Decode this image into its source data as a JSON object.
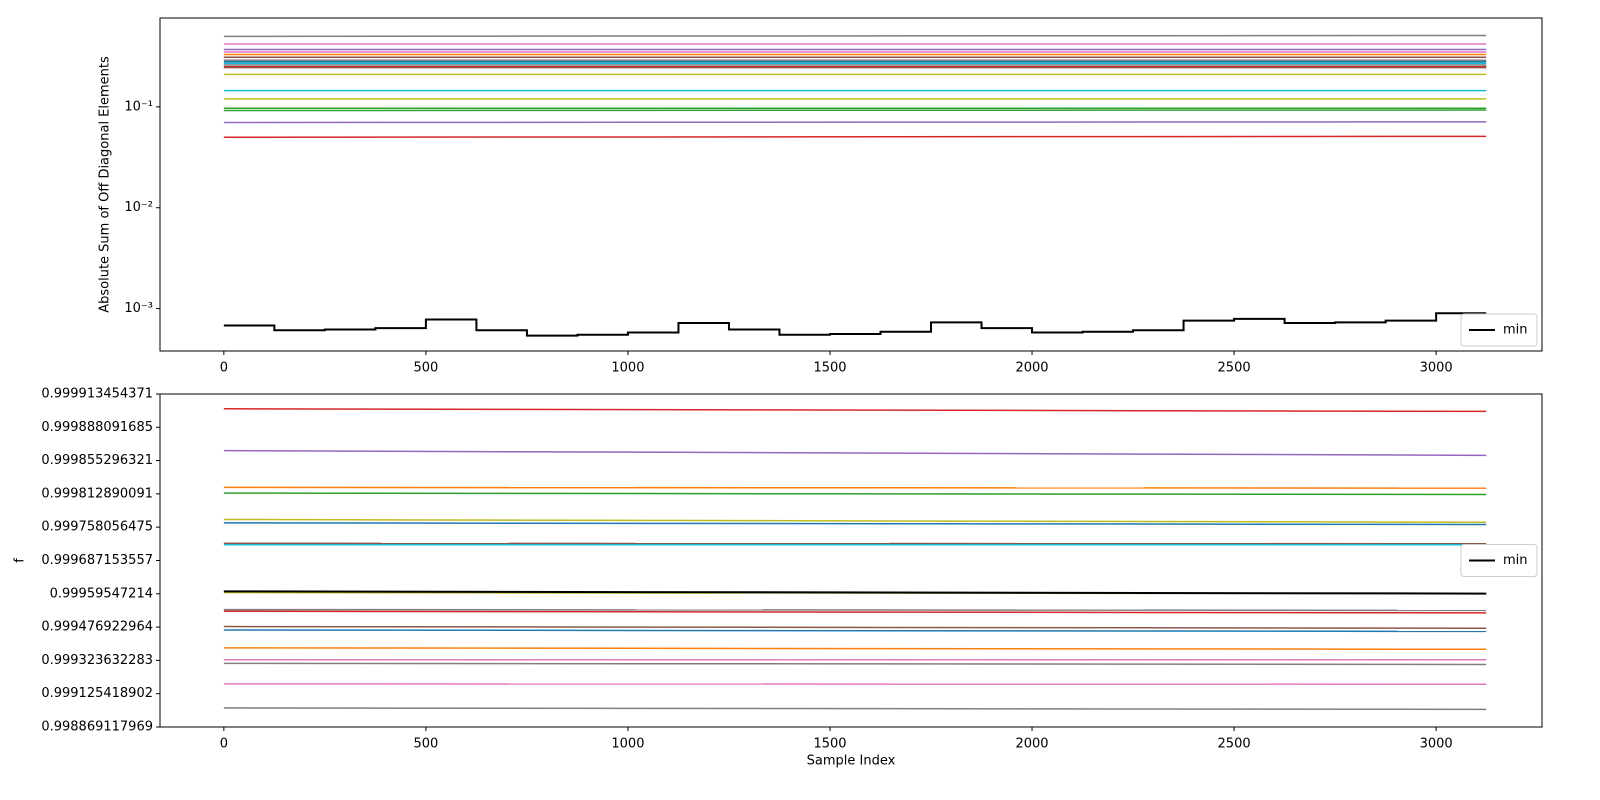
{
  "chart_data": [
    {
      "type": "line",
      "ylabel": "Absolute Sum of Off Diagonal Elements",
      "yscale": "log",
      "legend": "lower right",
      "xlim": [
        -158,
        3262
      ],
      "ylim": [
        0.00038,
        0.76
      ],
      "xticks": [
        0,
        500,
        1000,
        1500,
        2000,
        2500,
        3000
      ],
      "yticks": [
        {
          "value": 0.001,
          "label": "10⁻³"
        },
        {
          "value": 0.01,
          "label": "10⁻²"
        },
        {
          "value": 0.1,
          "label": "10⁻¹"
        }
      ],
      "series": [
        {
          "color": "#7f7f7f",
          "x": [
            0,
            3124
          ],
          "values": [
            0.5,
            0.51
          ]
        },
        {
          "color": "#e377c2",
          "x": [
            0,
            3124
          ],
          "values": [
            0.42,
            0.42
          ]
        },
        {
          "color": "#9467bd",
          "x": [
            0,
            3124
          ],
          "values": [
            0.37,
            0.37
          ]
        },
        {
          "color": "#e377c2",
          "x": [
            0,
            3124
          ],
          "values": [
            0.35,
            0.35
          ]
        },
        {
          "color": "#ff7f0e",
          "x": [
            0,
            3124
          ],
          "values": [
            0.33,
            0.33
          ]
        },
        {
          "color": "#8c564b",
          "x": [
            0,
            3124
          ],
          "values": [
            0.31,
            0.31
          ]
        },
        {
          "color": "#7f7f7f",
          "x": [
            0,
            3124
          ],
          "values": [
            0.29,
            0.29
          ]
        },
        {
          "color": "#1f77b4",
          "x": [
            0,
            3124
          ],
          "values": [
            0.28,
            0.28
          ]
        },
        {
          "color": "#17becf",
          "x": [
            0,
            3124
          ],
          "values": [
            0.27,
            0.27
          ]
        },
        {
          "color": "#7f7f7f",
          "x": [
            0,
            3124
          ],
          "values": [
            0.26,
            0.26
          ]
        },
        {
          "color": "#d62728",
          "x": [
            0,
            3124
          ],
          "values": [
            0.25,
            0.25
          ]
        },
        {
          "color": "#8c564b",
          "x": [
            0,
            3124
          ],
          "values": [
            0.245,
            0.245
          ]
        },
        {
          "color": "#bcbd22",
          "x": [
            0,
            3124
          ],
          "values": [
            0.21,
            0.21
          ]
        },
        {
          "color": "#17becf",
          "x": [
            0,
            3124
          ],
          "values": [
            0.145,
            0.145
          ]
        },
        {
          "color": "#bcbd22",
          "x": [
            0,
            3124
          ],
          "values": [
            0.12,
            0.12
          ]
        },
        {
          "color": "#2ca02c",
          "x": [
            0,
            3124
          ],
          "values": [
            0.097,
            0.097
          ]
        },
        {
          "color": "#2ca02c",
          "x": [
            0,
            3124
          ],
          "values": [
            0.092,
            0.093
          ]
        },
        {
          "color": "#9467bd",
          "x": [
            0,
            3124
          ],
          "values": [
            0.07,
            0.071
          ]
        },
        {
          "color": "#d62728",
          "x": [
            0,
            3124
          ],
          "values": [
            0.05,
            0.051
          ]
        },
        {
          "name": "min",
          "color": "#000000",
          "linewidth": 2,
          "drawstyle": "steps-post",
          "x": [
            0,
            125,
            250,
            375,
            500,
            625,
            750,
            875,
            1000,
            1125,
            1250,
            1375,
            1500,
            1625,
            1750,
            1875,
            2000,
            2125,
            2250,
            2375,
            2500,
            2625,
            2750,
            2875,
            3000,
            3124
          ],
          "values": [
            0.00068,
            0.00061,
            0.00062,
            0.00064,
            0.00078,
            0.00061,
            0.00054,
            0.00055,
            0.00058,
            0.00072,
            0.00062,
            0.00055,
            0.00056,
            0.00059,
            0.00073,
            0.00064,
            0.00058,
            0.00059,
            0.00061,
            0.00076,
            0.00079,
            0.00072,
            0.00073,
            0.00076,
            0.0009,
            0.0009
          ]
        }
      ]
    },
    {
      "type": "line",
      "xlabel": "Sample Index",
      "ylabel": "f",
      "yscale": "logit",
      "legend": "center right",
      "xlim": [
        -158,
        3262
      ],
      "ylim": [
        0.998869117969,
        0.999913454371
      ],
      "xticks": [
        0,
        500,
        1000,
        1500,
        2000,
        2500,
        3000
      ],
      "yticks": [
        0.998869117969,
        0.999125418902,
        0.999323632283,
        0.999476922964,
        0.99959547214,
        0.999687153557,
        0.999758056475,
        0.999812890091,
        0.999855296321,
        0.999888091685,
        0.999913454371
      ],
      "series": [
        {
          "color": "#d62728",
          "x": [
            0,
            3124
          ],
          "values": [
            0.999903,
            0.999901
          ]
        },
        {
          "color": "#9467bd",
          "x": [
            0,
            3124
          ],
          "values": [
            0.999866,
            0.999861
          ]
        },
        {
          "color": "#ff7f0e",
          "x": [
            0,
            3124
          ],
          "values": [
            0.999822,
            0.999821
          ]
        },
        {
          "color": "#2ca02c",
          "x": [
            0,
            3124
          ],
          "values": [
            0.999814,
            0.999812
          ]
        },
        {
          "color": "#bcbd22",
          "x": [
            0,
            3124
          ],
          "values": [
            0.999772,
            0.999767
          ]
        },
        {
          "color": "#1f77b4",
          "x": [
            0,
            3124
          ],
          "values": [
            0.999766,
            0.999763
          ]
        },
        {
          "color": "#8c564b",
          "x": [
            0,
            3124
          ],
          "values": [
            0.999726,
            0.999725
          ]
        },
        {
          "color": "#17becf",
          "x": [
            0,
            3124
          ],
          "values": [
            0.999723,
            0.999723
          ]
        },
        {
          "color": "#bcbd22",
          "x": [
            0,
            3124
          ],
          "values": [
            0.999599,
            0.999596
          ]
        },
        {
          "color": "#7f7f7f",
          "x": [
            0,
            3124
          ],
          "values": [
            0.999543,
            0.99954
          ]
        },
        {
          "color": "#d62728",
          "x": [
            0,
            3124
          ],
          "values": [
            0.999537,
            0.999531
          ]
        },
        {
          "color": "#8c564b",
          "x": [
            0,
            3124
          ],
          "values": [
            0.999479,
            0.999472
          ]
        },
        {
          "color": "#1f77b4",
          "x": [
            0,
            3124
          ],
          "values": [
            0.999465,
            0.999459
          ]
        },
        {
          "color": "#ff7f0e",
          "x": [
            0,
            3124
          ],
          "values": [
            0.999386,
            0.999379
          ]
        },
        {
          "color": "#e377c2",
          "x": [
            0,
            3124
          ],
          "values": [
            0.999327,
            0.999327
          ]
        },
        {
          "color": "#7f7f7f",
          "x": [
            0,
            3124
          ],
          "values": [
            0.999308,
            0.999302
          ]
        },
        {
          "color": "#e377c2",
          "x": [
            0,
            3124
          ],
          "values": [
            0.999189,
            0.999187
          ]
        },
        {
          "color": "#7f7f7f",
          "x": [
            0,
            3124
          ],
          "values": [
            0.999024,
            0.999013
          ]
        },
        {
          "name": "min",
          "color": "#000000",
          "linewidth": 2,
          "x": [
            0,
            3124
          ],
          "values": [
            0.999603,
            0.999596
          ]
        }
      ]
    }
  ]
}
